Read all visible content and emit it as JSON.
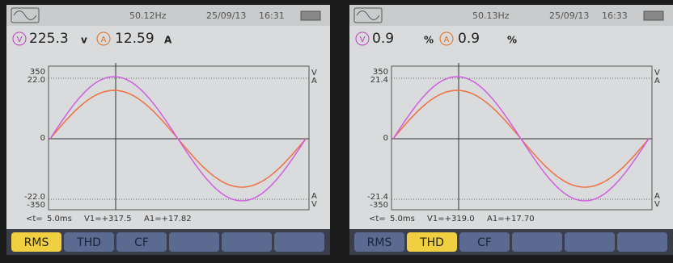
{
  "screens": [
    {
      "header": {
        "frequency": "50.12Hz",
        "date": "25/09/13",
        "time": "16:31"
      },
      "readings": {
        "voltage": "225.3",
        "voltage_unit": "v",
        "current": "12.59",
        "current_unit": "A"
      },
      "icons": {
        "v": "V",
        "a": "A"
      },
      "scale": {
        "top_v": "350",
        "top_a": "22.0",
        "zero": "0",
        "bottom_a": "-22.0",
        "bottom_v": "-350"
      },
      "axis_units": {
        "v": "V",
        "a": "A"
      },
      "cursor": {
        "time_label": "<t=",
        "time": "5.0ms",
        "v1": "V1=+317.5",
        "a1": "A1=+17.82"
      },
      "tabs": [
        "RMS",
        "THD",
        "CF"
      ],
      "active_tab": 0
    },
    {
      "header": {
        "frequency": "50.13Hz",
        "date": "25/09/13",
        "time": "16:33"
      },
      "readings": {
        "voltage": "0.9",
        "voltage_unit": "%",
        "current": "0.9",
        "current_unit": "%"
      },
      "icons": {
        "v": "V",
        "a": "A"
      },
      "scale": {
        "top_v": "350",
        "top_a": "21.4",
        "zero": "0",
        "bottom_a": "-21.4",
        "bottom_v": "-350"
      },
      "axis_units": {
        "v": "V",
        "a": "A"
      },
      "cursor": {
        "time_label": "<t=",
        "time": "5.0ms",
        "v1": "V1=+319.0",
        "a1": "A1=+17.70"
      },
      "tabs": [
        "RMS",
        "THD",
        "CF"
      ],
      "active_tab": 1
    }
  ]
}
